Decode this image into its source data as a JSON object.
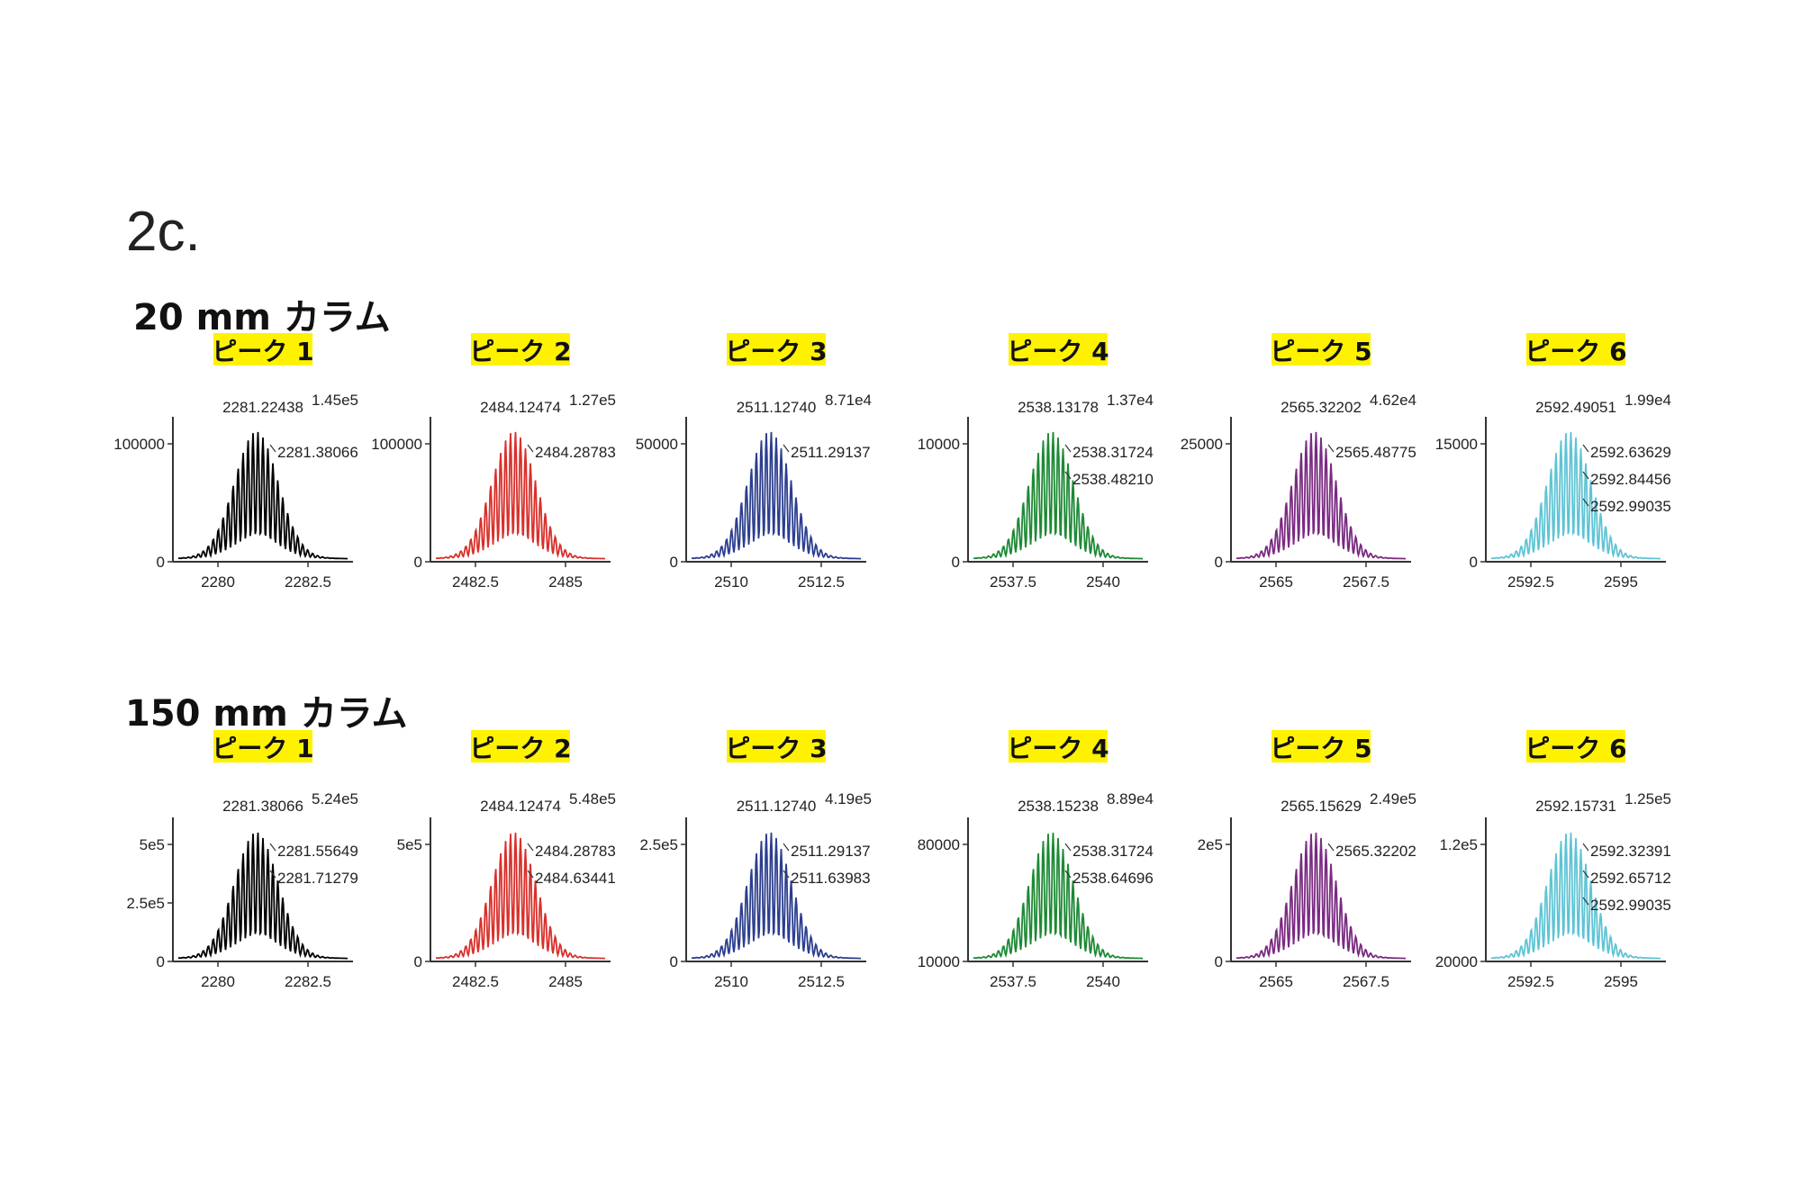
{
  "figure_label": "2c.",
  "rows": [
    {
      "label": "20 mm カラム",
      "charts": [
        {
          "peak_label": "ピーク 1",
          "color": "#000000",
          "x_ticks": [
            "2280",
            "2282.5"
          ],
          "y_ticks": [
            "0",
            "100000"
          ],
          "intensity": "1.45e5",
          "mz_labels": [
            "2281.22438",
            "2281.38066"
          ]
        },
        {
          "peak_label": "ピーク 2",
          "color": "#d9302b",
          "x_ticks": [
            "2482.5",
            "2485"
          ],
          "y_ticks": [
            "0",
            "100000"
          ],
          "intensity": "1.27e5",
          "mz_labels": [
            "2484.12474",
            "2484.28783"
          ]
        },
        {
          "peak_label": "ピーク 3",
          "color": "#2c3e8f",
          "x_ticks": [
            "2510",
            "2512.5"
          ],
          "y_ticks": [
            "0",
            "50000"
          ],
          "intensity": "8.71e4",
          "mz_labels": [
            "2511.12740",
            "2511.29137"
          ]
        },
        {
          "peak_label": "ピーク 4",
          "color": "#1d8a34",
          "x_ticks": [
            "2537.5",
            "2540"
          ],
          "y_ticks": [
            "0",
            "10000"
          ],
          "intensity": "1.37e4",
          "mz_labels": [
            "2538.13178",
            "2538.31724",
            "2538.48210"
          ]
        },
        {
          "peak_label": "ピーク 5",
          "color": "#7a2a82",
          "x_ticks": [
            "2565",
            "2567.5"
          ],
          "y_ticks": [
            "0",
            "25000"
          ],
          "intensity": "4.62e4",
          "mz_labels": [
            "2565.32202",
            "2565.48775"
          ]
        },
        {
          "peak_label": "ピーク 6",
          "color": "#5ec4d4",
          "x_ticks": [
            "2592.5",
            "2595"
          ],
          "y_ticks": [
            "0",
            "15000"
          ],
          "intensity": "1.99e4",
          "mz_labels": [
            "2592.49051",
            "2592.63629",
            "2592.84456",
            "2592.99035"
          ]
        }
      ]
    },
    {
      "label": "150 mm カラム",
      "charts": [
        {
          "peak_label": "ピーク 1",
          "color": "#000000",
          "x_ticks": [
            "2280",
            "2282.5"
          ],
          "y_ticks": [
            "0",
            "2.5e5",
            "5e5"
          ],
          "intensity": "5.24e5",
          "mz_labels": [
            "2281.38066",
            "2281.55649",
            "2281.71279"
          ]
        },
        {
          "peak_label": "ピーク 2",
          "color": "#d9302b",
          "x_ticks": [
            "2482.5",
            "2485"
          ],
          "y_ticks": [
            "0",
            "5e5"
          ],
          "intensity": "5.48e5",
          "mz_labels": [
            "2484.12474",
            "2484.28783",
            "2484.63441"
          ]
        },
        {
          "peak_label": "ピーク 3",
          "color": "#2c3e8f",
          "x_ticks": [
            "2510",
            "2512.5"
          ],
          "y_ticks": [
            "0",
            "2.5e5"
          ],
          "intensity": "4.19e5",
          "mz_labels": [
            "2511.12740",
            "2511.29137",
            "2511.63983"
          ]
        },
        {
          "peak_label": "ピーク 4",
          "color": "#1d8a34",
          "x_ticks": [
            "2537.5",
            "2540"
          ],
          "y_ticks": [
            "10000",
            "80000"
          ],
          "intensity": "8.89e4",
          "mz_labels": [
            "2538.15238",
            "2538.31724",
            "2538.64696"
          ]
        },
        {
          "peak_label": "ピーク 5",
          "color": "#7a2a82",
          "x_ticks": [
            "2565",
            "2567.5"
          ],
          "y_ticks": [
            "0",
            "2e5"
          ],
          "intensity": "2.49e5",
          "mz_labels": [
            "2565.15629",
            "2565.32202"
          ]
        },
        {
          "peak_label": "ピーク 6",
          "color": "#5ec4d4",
          "x_ticks": [
            "2592.5",
            "2595"
          ],
          "y_ticks": [
            "20000",
            "1.2e5"
          ],
          "intensity": "1.25e5",
          "mz_labels": [
            "2592.15731",
            "2592.32391",
            "2592.65712",
            "2592.99035"
          ]
        }
      ]
    }
  ]
}
